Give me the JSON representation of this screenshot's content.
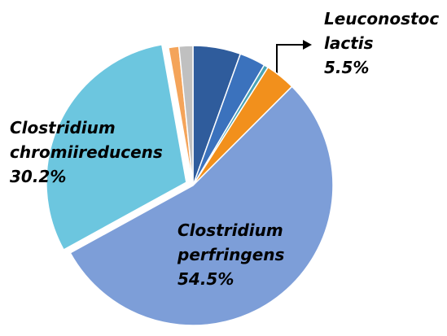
{
  "chart_data": {
    "type": "pie",
    "categories": [
      "Leuconostoc lactis",
      null,
      null,
      null,
      "Clostridium perfringens",
      "Clostridium chromiireducens",
      null,
      null
    ],
    "values": [
      5.5,
      3.0,
      0.5,
      3.5,
      54.5,
      30.2,
      1.2,
      1.6
    ],
    "value_labels": [
      "5.5%",
      null,
      null,
      null,
      "54.5%",
      "30.2%",
      null,
      null
    ],
    "colors": [
      "#2f5c9c",
      "#3b72bd",
      "#4aa3b5",
      "#f2901c",
      "#7d9ed8",
      "#6cc6df",
      "#f4a45a",
      "#c0c0c0"
    ]
  }
}
